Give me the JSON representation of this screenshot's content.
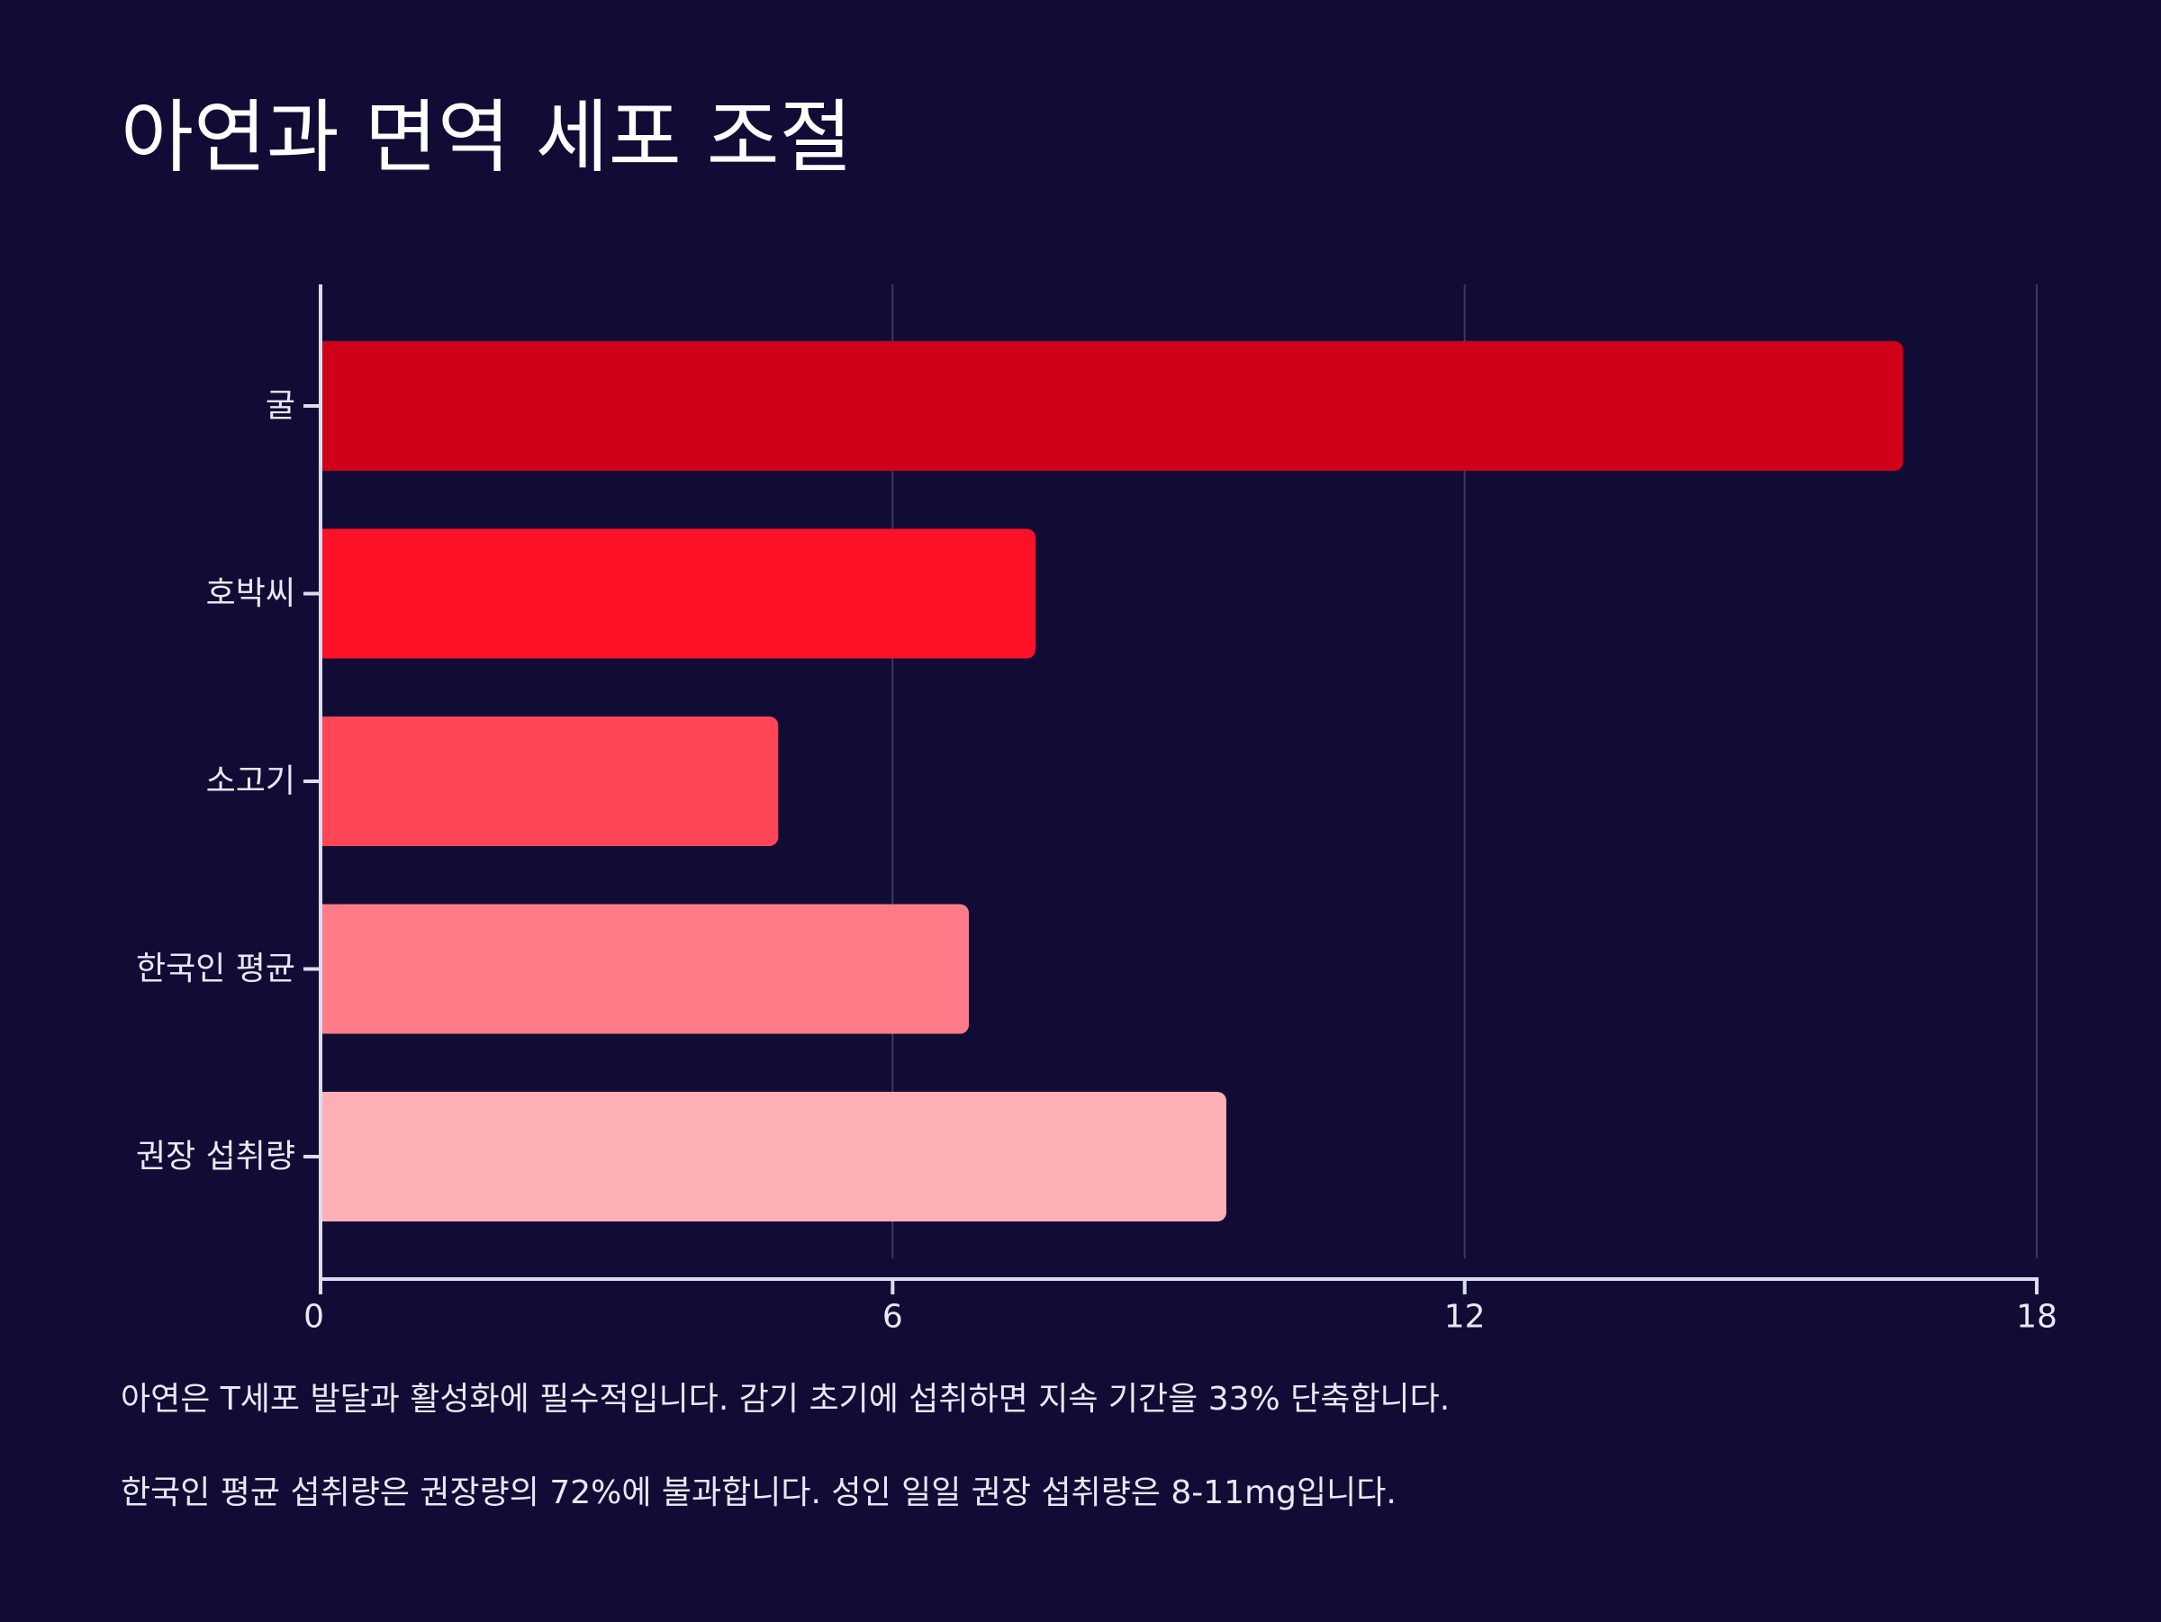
{
  "chart_data": {
    "type": "bar",
    "orientation": "horizontal",
    "title": "아연과 면역 세포 조절",
    "categories": [
      "굴",
      "호박씨",
      "소고기",
      "한국인 평균",
      "권장 섭취량"
    ],
    "values": [
      16.6,
      7.5,
      4.8,
      6.8,
      9.5
    ],
    "colors": [
      "#d10019",
      "#fd1127",
      "#ff4656",
      "#ff7b88",
      "#ffb0b7"
    ],
    "xlim": [
      0,
      18
    ],
    "xticks": [
      0,
      6,
      12,
      18
    ],
    "xlabel": "",
    "ylabel": "",
    "grid": true,
    "notes": [
      "아연은 T세포 발달과 활성화에 필수적입니다. 감기 초기에 섭취하면 지속 기간을 33% 단축합니다.",
      "한국인 평균 섭취량은 권장량의 72%에 불과합니다. 성인 일일 권장 섭취량은 8-11mg입니다."
    ]
  },
  "colors": {
    "background": "#110c35",
    "axis": "#dcdcf0",
    "grid": "#3c3862"
  }
}
